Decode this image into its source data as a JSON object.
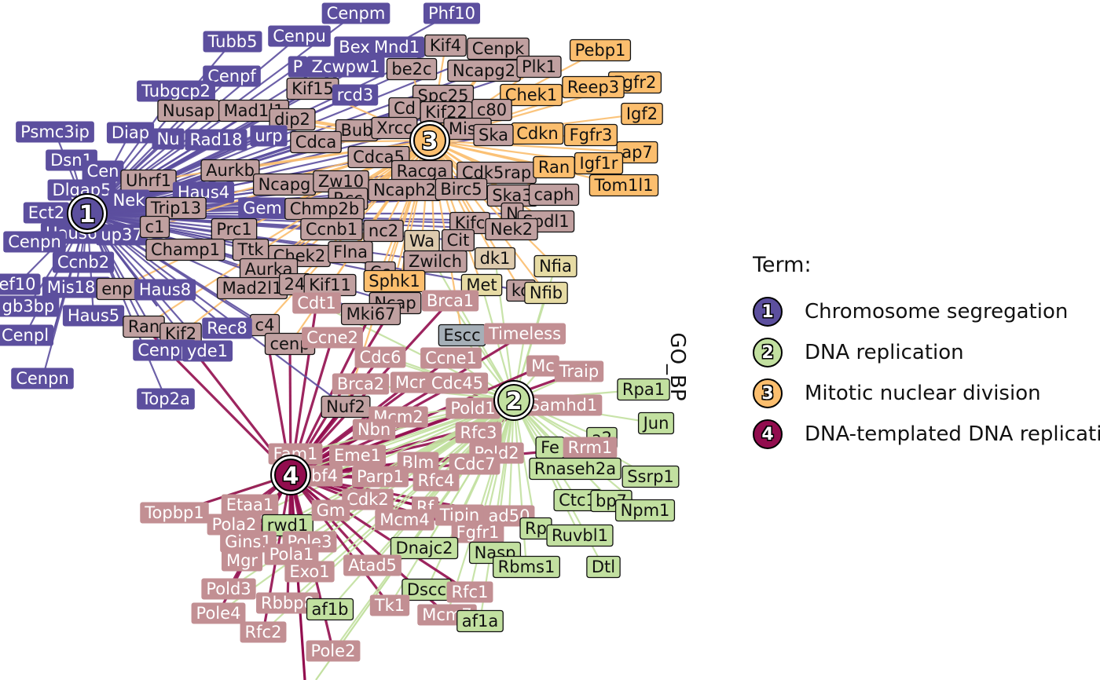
{
  "colors": {
    "term1": "#5C4F9E",
    "term2": "#C2E0A0",
    "term3": "#FBBE6E",
    "term4": "#920D4E",
    "gene_shared": "#C0A0A0"
  },
  "legend": {
    "title": "Term:",
    "items": [
      {
        "num": "1",
        "label": "Chromosome segregation",
        "color": "#5C4F9E"
      },
      {
        "num": "2",
        "label": "DNA replication",
        "color": "#C2E0A0"
      },
      {
        "num": "3",
        "label": "Mitotic nuclear division",
        "color": "#FBBE6E"
      },
      {
        "num": "4",
        "label": "DNA-templated DNA replication",
        "color": "#920D4E"
      }
    ]
  },
  "side_title": "GO_BP",
  "hubs": [
    {
      "num": "1",
      "color": "#5C4F9E"
    },
    {
      "num": "2",
      "color": "#C2E0A0"
    },
    {
      "num": "3",
      "color": "#FBBE6E"
    },
    {
      "num": "4",
      "color": "#920D4E"
    }
  ],
  "genes": [
    {
      "label": "Cenpm",
      "group": "1"
    },
    {
      "label": "Phf10",
      "group": "1"
    },
    {
      "label": "Tubb5",
      "group": "1"
    },
    {
      "label": "Cenpu",
      "group": "1"
    },
    {
      "label": "Bex",
      "group": "1"
    },
    {
      "label": "Mnd1",
      "group": "1"
    },
    {
      "label": "Kif4",
      "group": "m"
    },
    {
      "label": "Cenpk",
      "group": "m"
    },
    {
      "label": "Pebp1",
      "group": "3"
    },
    {
      "label": "P",
      "group": "1"
    },
    {
      "label": "Zcwpw1",
      "group": "1"
    },
    {
      "label": "be2c",
      "group": "m"
    },
    {
      "label": "Ncapg2",
      "group": "m"
    },
    {
      "label": "Plk1",
      "group": "m"
    },
    {
      "label": "Fgfr2",
      "group": "3"
    },
    {
      "label": "Cenpf",
      "group": "1"
    },
    {
      "label": "Kif15",
      "group": "m"
    },
    {
      "label": "rcd3",
      "group": "1"
    },
    {
      "label": "Reep3",
      "group": "3"
    },
    {
      "label": "Tubgcp2",
      "group": "1"
    },
    {
      "label": "Spc25",
      "group": "m"
    },
    {
      "label": "Chek1",
      "group": "3"
    },
    {
      "label": "Nusap",
      "group": "m"
    },
    {
      "label": "Mad1l1",
      "group": "m"
    },
    {
      "label": "Cd",
      "group": "m"
    },
    {
      "label": "Kif22",
      "group": "m"
    },
    {
      "label": "c80",
      "group": "m"
    },
    {
      "label": "Igf2",
      "group": "3"
    },
    {
      "label": "Psmc3ip",
      "group": "1"
    },
    {
      "label": "Diap",
      "group": "1"
    },
    {
      "label": "dip2",
      "group": "m"
    },
    {
      "label": "urp",
      "group": "1"
    },
    {
      "label": "Bub",
      "group": "m"
    },
    {
      "label": "Xrcc",
      "group": "m"
    },
    {
      "label": "Misp",
      "group": "m"
    },
    {
      "label": "Cdkn",
      "group": "3"
    },
    {
      "label": "Fgfr3",
      "group": "3"
    },
    {
      "label": "Nu",
      "group": "1"
    },
    {
      "label": "Rad18",
      "group": "1"
    },
    {
      "label": "Cdca",
      "group": "m"
    },
    {
      "label": "Ska",
      "group": "m"
    },
    {
      "label": "ap7",
      "group": "3"
    },
    {
      "label": "Dsn1",
      "group": "1"
    },
    {
      "label": "Igf1r",
      "group": "3"
    },
    {
      "label": "Cdca5",
      "group": "m"
    },
    {
      "label": "Aurkb",
      "group": "m"
    },
    {
      "label": "Racga",
      "group": "m"
    },
    {
      "label": "Cdk5rap",
      "group": "m"
    },
    {
      "label": "Ran",
      "group": "3"
    },
    {
      "label": "Tom1l1",
      "group": "3"
    },
    {
      "label": "Cen",
      "group": "1"
    },
    {
      "label": "Uhrf1",
      "group": "m"
    },
    {
      "label": "Ncapg",
      "group": "m"
    },
    {
      "label": "Zw10",
      "group": "m"
    },
    {
      "label": "Dlgap5",
      "group": "1"
    },
    {
      "label": "Haus4",
      "group": "1"
    },
    {
      "label": "Ncaph2",
      "group": "m"
    },
    {
      "label": "Birc5",
      "group": "m"
    },
    {
      "label": "Ska3",
      "group": "m"
    },
    {
      "label": "caph",
      "group": "m"
    },
    {
      "label": "Nek",
      "group": "1"
    },
    {
      "label": "Rcc",
      "group": "m"
    },
    {
      "label": "Gem",
      "group": "1"
    },
    {
      "label": "Chmp2b",
      "group": "m"
    },
    {
      "label": "Ect2",
      "group": "1"
    },
    {
      "label": "Trip13",
      "group": "m"
    },
    {
      "label": "N",
      "group": "m"
    },
    {
      "label": "Spdl1",
      "group": "m"
    },
    {
      "label": "Kifc",
      "group": "m"
    },
    {
      "label": "Haus6",
      "group": "1"
    },
    {
      "label": "up37",
      "group": "1"
    },
    {
      "label": "c1",
      "group": "m"
    },
    {
      "label": "Prc1",
      "group": "m"
    },
    {
      "label": "Ccnb1",
      "group": "m"
    },
    {
      "label": "nc2",
      "group": "m"
    },
    {
      "label": "Nek2",
      "group": "m"
    },
    {
      "label": "Cenpn",
      "group": "1"
    },
    {
      "label": "Wa",
      "group": "w"
    },
    {
      "label": "Cit",
      "group": "m"
    },
    {
      "label": "Champ1",
      "group": "m"
    },
    {
      "label": "Ttk",
      "group": "m"
    },
    {
      "label": "Chek2",
      "group": "m"
    },
    {
      "label": "Flna",
      "group": "m"
    },
    {
      "label": "Ccnb2",
      "group": "1"
    },
    {
      "label": "Zwilch",
      "group": "m"
    },
    {
      "label": "dk1",
      "group": "w"
    },
    {
      "label": "Nfia",
      "group": "y"
    },
    {
      "label": "ef10",
      "group": "1"
    },
    {
      "label": "Mis18a",
      "group": "1"
    },
    {
      "label": "Aurka",
      "group": "m"
    },
    {
      "label": "enp",
      "group": "m"
    },
    {
      "label": "Mad2l1",
      "group": "m"
    },
    {
      "label": "24",
      "group": "m"
    },
    {
      "label": "Kif11",
      "group": "m"
    },
    {
      "label": "Cc",
      "group": "m"
    },
    {
      "label": "Sphk1",
      "group": "3"
    },
    {
      "label": "Met",
      "group": "y"
    },
    {
      "label": "ko",
      "group": "m"
    },
    {
      "label": "Nfib",
      "group": "y"
    },
    {
      "label": "gb3bp",
      "group": "1"
    },
    {
      "label": "Haus8",
      "group": "1"
    },
    {
      "label": "Cdt1",
      "group": "p"
    },
    {
      "label": "Ncap",
      "group": "m"
    },
    {
      "label": "Brca1",
      "group": "p"
    },
    {
      "label": "Haus5",
      "group": "1"
    },
    {
      "label": "Ran",
      "group": "m"
    },
    {
      "label": "c4",
      "group": "m"
    },
    {
      "label": "Mki67",
      "group": "m"
    },
    {
      "label": "Rec8",
      "group": "1"
    },
    {
      "label": "Kif2",
      "group": "m"
    },
    {
      "label": "Cenpl",
      "group": "1"
    },
    {
      "label": "Escc",
      "group": "g"
    },
    {
      "label": "Timeless",
      "group": "p"
    },
    {
      "label": "cenp",
      "group": "m"
    },
    {
      "label": "Ccne2",
      "group": "p"
    },
    {
      "label": "Cenpp",
      "group": "1"
    },
    {
      "label": "yde1",
      "group": "1"
    },
    {
      "label": "Cdc6",
      "group": "p"
    },
    {
      "label": "Ccne1",
      "group": "p"
    },
    {
      "label": "Mc",
      "group": "p"
    },
    {
      "label": "Traip",
      "group": "p"
    },
    {
      "label": "Cenpn",
      "group": "1"
    },
    {
      "label": "Brca2",
      "group": "p"
    },
    {
      "label": "Mcr",
      "group": "p"
    },
    {
      "label": "Cdc45",
      "group": "p"
    },
    {
      "label": "Rpa1",
      "group": "2"
    },
    {
      "label": "Top2a",
      "group": "1"
    },
    {
      "label": "Nuf2",
      "group": "m"
    },
    {
      "label": "Pold1",
      "group": "p"
    },
    {
      "label": "Samhd1",
      "group": "p"
    },
    {
      "label": "Mcm2",
      "group": "p"
    },
    {
      "label": "Jun",
      "group": "2"
    },
    {
      "label": "Nbn",
      "group": "p"
    },
    {
      "label": "Rfc3",
      "group": "p"
    },
    {
      "label": "a2",
      "group": "2"
    },
    {
      "label": "Fam1",
      "group": "p"
    },
    {
      "label": "Eme1",
      "group": "p"
    },
    {
      "label": "Fe",
      "group": "2"
    },
    {
      "label": "Rrm1",
      "group": "p"
    },
    {
      "label": "Pold2",
      "group": "p"
    },
    {
      "label": "Blm",
      "group": "p"
    },
    {
      "label": "Cdc7",
      "group": "p"
    },
    {
      "label": "Rnaseh2a",
      "group": "2"
    },
    {
      "label": "Ssrp1",
      "group": "2"
    },
    {
      "label": "bf4",
      "group": "p"
    },
    {
      "label": "Parp1",
      "group": "p"
    },
    {
      "label": "Rfc4",
      "group": "p"
    },
    {
      "label": "Etaa1",
      "group": "p"
    },
    {
      "label": "Cdk2",
      "group": "p"
    },
    {
      "label": "Rf",
      "group": "p"
    },
    {
      "label": "Ctc1",
      "group": "2"
    },
    {
      "label": "bp7",
      "group": "2"
    },
    {
      "label": "Npm1",
      "group": "2"
    },
    {
      "label": "Topbp1",
      "group": "p"
    },
    {
      "label": "Pola2",
      "group": "p"
    },
    {
      "label": "rwd1",
      "group": "2"
    },
    {
      "label": "Gm",
      "group": "p"
    },
    {
      "label": "Mcm4",
      "group": "p"
    },
    {
      "label": "Tipin",
      "group": "p"
    },
    {
      "label": "ad50",
      "group": "p"
    },
    {
      "label": "Rp",
      "group": "2"
    },
    {
      "label": "Fgfr1",
      "group": "p"
    },
    {
      "label": "Ruvbl1",
      "group": "2"
    },
    {
      "label": "Gins1",
      "group": "p"
    },
    {
      "label": "Pole3",
      "group": "p"
    },
    {
      "label": "Dnajc2",
      "group": "2"
    },
    {
      "label": "Nasp",
      "group": "2"
    },
    {
      "label": "Mgr",
      "group": "p"
    },
    {
      "label": "Pola1",
      "group": "p"
    },
    {
      "label": "Atad5",
      "group": "p"
    },
    {
      "label": "Rbms1",
      "group": "2"
    },
    {
      "label": "Dtl",
      "group": "2"
    },
    {
      "label": "Exo1",
      "group": "p"
    },
    {
      "label": "Pold3",
      "group": "p"
    },
    {
      "label": "Dscc",
      "group": "2"
    },
    {
      "label": "Rfc1",
      "group": "p"
    },
    {
      "label": "Rbbp8",
      "group": "p"
    },
    {
      "label": "af1b",
      "group": "2"
    },
    {
      "label": "Tk1",
      "group": "p"
    },
    {
      "label": "Pole4",
      "group": "p"
    },
    {
      "label": "Mcm7",
      "group": "p"
    },
    {
      "label": "af1a",
      "group": "2"
    },
    {
      "label": "Rfc2",
      "group": "p"
    },
    {
      "label": "Pole2",
      "group": "p"
    }
  ]
}
